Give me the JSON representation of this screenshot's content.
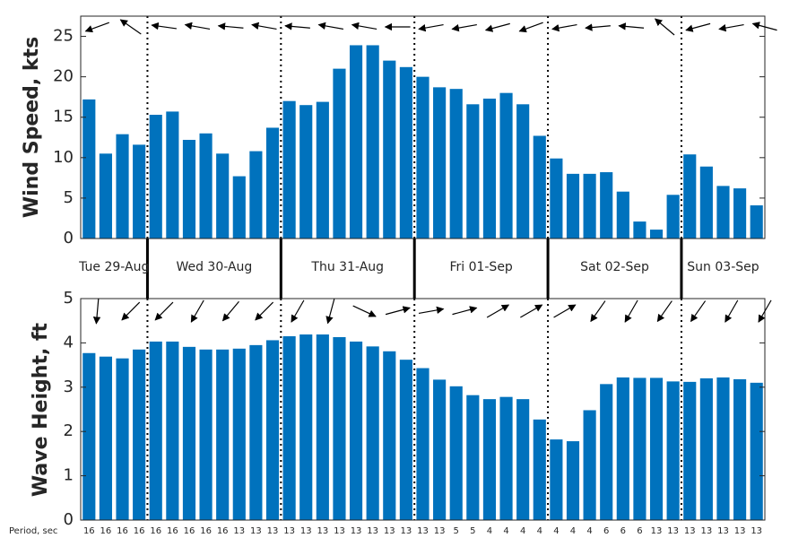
{
  "days": [
    "Tue 29-Aug",
    "Wed 30-Aug",
    "Thu 31-Aug",
    "Fri 01-Sep",
    "Sat 02-Sep",
    "Sun 03-Sep"
  ],
  "chart_data": [
    {
      "type": "bar",
      "ylabel": "Wind Speed, kts",
      "color": "#0072bd",
      "ylim": [
        0,
        27.5
      ],
      "yticks": [
        0,
        5,
        10,
        15,
        20,
        25
      ],
      "values": [
        17.2,
        10.5,
        12.9,
        11.6,
        15.3,
        15.7,
        12.2,
        13.0,
        10.5,
        7.7,
        10.8,
        13.7,
        17.0,
        16.5,
        16.9,
        21.0,
        23.9,
        23.9,
        22.0,
        21.2,
        20.0,
        18.7,
        18.5,
        16.6,
        17.3,
        18.0,
        16.6,
        12.7,
        9.9,
        8.0,
        8.0,
        8.2,
        5.8,
        2.1,
        1.1,
        5.4,
        10.4,
        8.9,
        6.5,
        6.2,
        4.1
      ],
      "directions": [
        200,
        145,
        172,
        170,
        175,
        170,
        175,
        170,
        170,
        180,
        190,
        190,
        195,
        200,
        190,
        185,
        175,
        140,
        195,
        190,
        165
      ]
    },
    {
      "type": "bar",
      "ylabel": "Wave Height, ft",
      "color": "#0072bd",
      "ylim": [
        0,
        5
      ],
      "yticks": [
        0,
        1,
        2,
        3,
        4,
        5
      ],
      "values": [
        3.77,
        3.69,
        3.65,
        3.85,
        4.03,
        4.03,
        3.91,
        3.85,
        3.85,
        3.87,
        3.95,
        4.06,
        4.15,
        4.19,
        4.19,
        4.13,
        4.03,
        3.92,
        3.81,
        3.62,
        3.43,
        3.17,
        3.02,
        2.82,
        2.73,
        2.78,
        2.73,
        2.27,
        1.82,
        1.78,
        2.48,
        3.07,
        3.22,
        3.21,
        3.21,
        3.13,
        3.12,
        3.2,
        3.22,
        3.18,
        3.1
      ],
      "directions": [
        265,
        225,
        225,
        240,
        230,
        225,
        240,
        255,
        335,
        15,
        10,
        15,
        30,
        30,
        30,
        235,
        240,
        235,
        235,
        240,
        240
      ],
      "period_label": "Period, sec",
      "periods": [
        "16",
        "16",
        "16",
        "16",
        "16",
        "16",
        "16",
        "16",
        "16",
        "13",
        "13",
        "13",
        "13",
        "13",
        "13",
        "13",
        "13",
        "13",
        "13",
        "13",
        "13",
        "13",
        "5",
        "5",
        "4",
        "4",
        "4",
        "4",
        "4",
        "4",
        "4",
        "6",
        "6",
        "6",
        "13",
        "13",
        "13",
        "13",
        "13",
        "13",
        "13"
      ]
    }
  ]
}
